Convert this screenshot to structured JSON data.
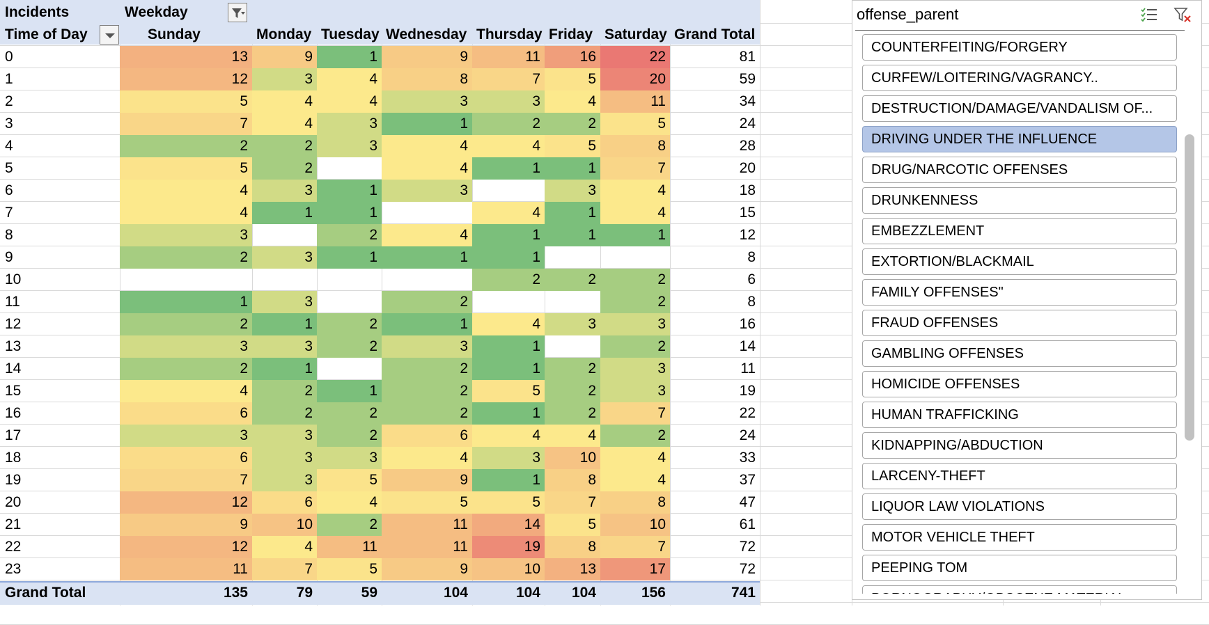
{
  "pivot": {
    "corner_label": "Incidents",
    "col_field_label": "Weekday",
    "row_field_label": "Time of Day",
    "columns": [
      "Sunday",
      "Monday",
      "Tuesday",
      "Wednesday",
      "Thursday",
      "Friday",
      "Saturday",
      "Grand Total"
    ],
    "rows": [
      {
        "label": "0",
        "values": [
          "13",
          "9",
          "1",
          "9",
          "11",
          "16",
          "22"
        ],
        "total": "81"
      },
      {
        "label": "1",
        "values": [
          "12",
          "3",
          "4",
          "8",
          "7",
          "5",
          "20"
        ],
        "total": "59"
      },
      {
        "label": "2",
        "values": [
          "5",
          "4",
          "4",
          "3",
          "3",
          "4",
          "11"
        ],
        "total": "34"
      },
      {
        "label": "3",
        "values": [
          "7",
          "4",
          "3",
          "1",
          "2",
          "2",
          "5"
        ],
        "total": "24"
      },
      {
        "label": "4",
        "values": [
          "2",
          "2",
          "3",
          "4",
          "4",
          "5",
          "8"
        ],
        "total": "28"
      },
      {
        "label": "5",
        "values": [
          "5",
          "2",
          "",
          "4",
          "1",
          "1",
          "7"
        ],
        "total": "20"
      },
      {
        "label": "6",
        "values": [
          "4",
          "3",
          "1",
          "3",
          "",
          "3",
          "4"
        ],
        "total": "18"
      },
      {
        "label": "7",
        "values": [
          "4",
          "1",
          "1",
          "",
          "4",
          "1",
          "4"
        ],
        "total": "15"
      },
      {
        "label": "8",
        "values": [
          "3",
          "",
          "2",
          "4",
          "1",
          "1",
          "1"
        ],
        "total": "12"
      },
      {
        "label": "9",
        "values": [
          "2",
          "3",
          "1",
          "1",
          "1",
          "",
          ""
        ],
        "total": "8"
      },
      {
        "label": "10",
        "values": [
          "",
          "",
          "",
          "",
          "2",
          "2",
          "2"
        ],
        "total": "6"
      },
      {
        "label": "11",
        "values": [
          "1",
          "3",
          "",
          "2",
          "",
          "",
          "2"
        ],
        "total": "8"
      },
      {
        "label": "12",
        "values": [
          "2",
          "1",
          "2",
          "1",
          "4",
          "3",
          "3"
        ],
        "total": "16"
      },
      {
        "label": "13",
        "values": [
          "3",
          "3",
          "2",
          "3",
          "1",
          "",
          "2"
        ],
        "total": "14"
      },
      {
        "label": "14",
        "values": [
          "2",
          "1",
          "",
          "2",
          "1",
          "2",
          "3"
        ],
        "total": "11"
      },
      {
        "label": "15",
        "values": [
          "4",
          "2",
          "1",
          "2",
          "5",
          "2",
          "3"
        ],
        "total": "19"
      },
      {
        "label": "16",
        "values": [
          "6",
          "2",
          "2",
          "2",
          "1",
          "2",
          "7"
        ],
        "total": "22"
      },
      {
        "label": "17",
        "values": [
          "3",
          "3",
          "2",
          "6",
          "4",
          "4",
          "2"
        ],
        "total": "24"
      },
      {
        "label": "18",
        "values": [
          "6",
          "3",
          "3",
          "4",
          "3",
          "10",
          "4"
        ],
        "total": "33"
      },
      {
        "label": "19",
        "values": [
          "7",
          "3",
          "5",
          "9",
          "1",
          "8",
          "4"
        ],
        "total": "37"
      },
      {
        "label": "20",
        "values": [
          "12",
          "6",
          "4",
          "5",
          "5",
          "7",
          "8"
        ],
        "total": "47"
      },
      {
        "label": "21",
        "values": [
          "9",
          "10",
          "2",
          "11",
          "14",
          "5",
          "10"
        ],
        "total": "61"
      },
      {
        "label": "22",
        "values": [
          "12",
          "4",
          "11",
          "11",
          "19",
          "8",
          "7"
        ],
        "total": "72"
      },
      {
        "label": "23",
        "values": [
          "11",
          "7",
          "5",
          "9",
          "10",
          "13",
          "17"
        ],
        "total": "72"
      }
    ],
    "grand_total": {
      "label": "Grand Total",
      "values": [
        "135",
        "79",
        "59",
        "104",
        "104",
        "104",
        "156"
      ],
      "total": "741"
    }
  },
  "heatmap_colors": {
    "low": "#7bbf7b",
    "mid": "#fce98c",
    "high": "#ea7873",
    "header_bg": "#dae3f3"
  },
  "slicer": {
    "title": "offense_parent",
    "multi_select_icon": "multi-select-icon",
    "clear_filter_icon": "clear-filter-icon",
    "items": [
      {
        "label": "COUNTERFEITING/FORGERY",
        "selected": false
      },
      {
        "label": "CURFEW/LOITERING/VAGRANCY..",
        "selected": false
      },
      {
        "label": "DESTRUCTION/DAMAGE/VANDALISM OF...",
        "selected": false
      },
      {
        "label": "DRIVING UNDER THE INFLUENCE",
        "selected": true
      },
      {
        "label": "DRUG/NARCOTIC OFFENSES",
        "selected": false
      },
      {
        "label": "DRUNKENNESS",
        "selected": false
      },
      {
        "label": "EMBEZZLEMENT",
        "selected": false
      },
      {
        "label": "EXTORTION/BLACKMAIL",
        "selected": false
      },
      {
        "label": "FAMILY OFFENSES\"",
        "selected": false
      },
      {
        "label": "FRAUD OFFENSES",
        "selected": false
      },
      {
        "label": "GAMBLING OFFENSES",
        "selected": false
      },
      {
        "label": "HOMICIDE  OFFENSES",
        "selected": false
      },
      {
        "label": "HUMAN TRAFFICKING",
        "selected": false
      },
      {
        "label": "KIDNAPPING/ABDUCTION",
        "selected": false
      },
      {
        "label": "LARCENY-THEFT",
        "selected": false
      },
      {
        "label": "LIQUOR LAW VIOLATIONS",
        "selected": false
      },
      {
        "label": "MOTOR VEHICLE THEFT",
        "selected": false
      },
      {
        "label": "PEEPING TOM",
        "selected": false
      },
      {
        "label": "PORNOGRAPHY/OBSCENE MATERIAL",
        "selected": false
      }
    ]
  }
}
